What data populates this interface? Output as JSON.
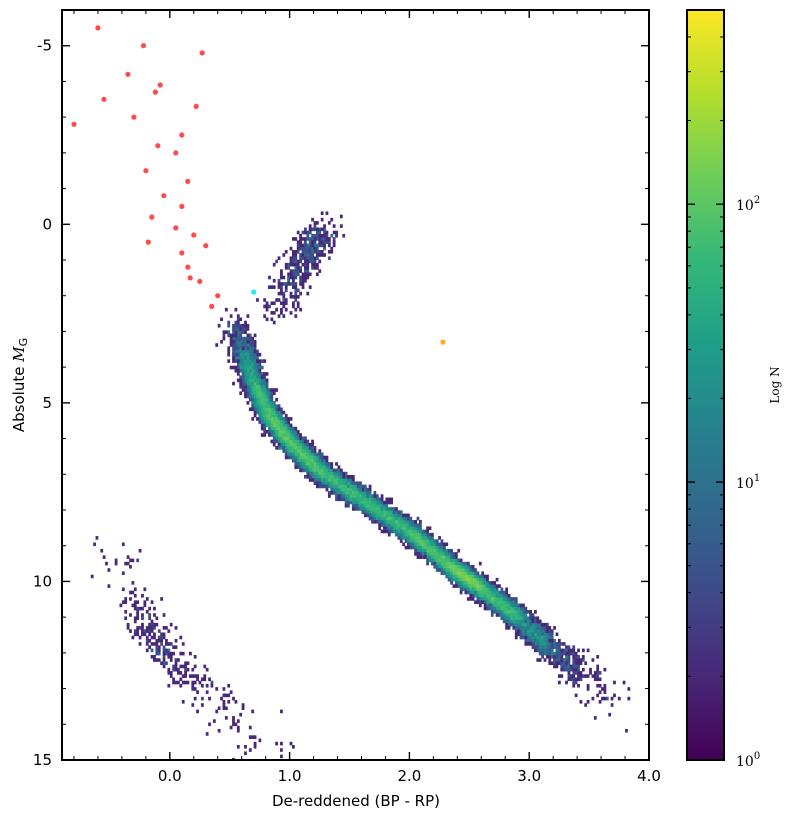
{
  "chart_data": {
    "type": "heatmap",
    "title": "",
    "xlabel": "De-reddened (BP - RP)",
    "ylabel": "Absolute M_G",
    "ylabel_parts": {
      "prefix": "Absolute ",
      "symbol": "M",
      "subscript": "G"
    },
    "xlim": [
      -0.9,
      4.0
    ],
    "ylim": [
      15,
      -6
    ],
    "y_inverted": true,
    "x_ticks": [
      0.0,
      1.0,
      2.0,
      3.0,
      4.0
    ],
    "x_tick_labels": [
      "0.0",
      "1.0",
      "2.0",
      "3.0",
      "4.0"
    ],
    "y_ticks": [
      -5,
      0,
      5,
      10,
      15
    ],
    "y_tick_labels": [
      "-5",
      "0",
      "5",
      "10",
      "15"
    ],
    "colorbar": {
      "label": "Log N",
      "scale": "log",
      "range": [
        1,
        500
      ],
      "ticks": [
        1,
        10,
        100
      ],
      "tick_labels": [
        {
          "base": "10",
          "exp": "0"
        },
        {
          "base": "10",
          "exp": "1"
        },
        {
          "base": "10",
          "exp": "2"
        }
      ],
      "colormap": "viridis"
    },
    "density_ridges": [
      {
        "name": "main-sequence",
        "points": [
          [
            0.55,
            2.9,
            8
          ],
          [
            0.62,
            3.6,
            40
          ],
          [
            0.7,
            4.4,
            150
          ],
          [
            0.82,
            5.3,
            250
          ],
          [
            1.0,
            6.1,
            300
          ],
          [
            1.25,
            6.9,
            280
          ],
          [
            1.6,
            7.7,
            260
          ],
          [
            2.0,
            8.6,
            300
          ],
          [
            2.35,
            9.6,
            400
          ],
          [
            2.6,
            10.2,
            350
          ],
          [
            2.9,
            11.0,
            150
          ],
          [
            3.15,
            11.8,
            40
          ],
          [
            3.4,
            12.5,
            10
          ],
          [
            3.7,
            13.2,
            3
          ]
        ]
      },
      {
        "name": "giant-branch",
        "points": [
          [
            0.9,
            2.4,
            6
          ],
          [
            1.0,
            1.7,
            10
          ],
          [
            1.1,
            1.1,
            12
          ],
          [
            1.2,
            0.5,
            18
          ],
          [
            1.28,
            0.2,
            8
          ]
        ]
      },
      {
        "name": "white-dwarf-sequence",
        "points": [
          [
            -0.45,
            9.2,
            2
          ],
          [
            -0.3,
            10.6,
            4
          ],
          [
            -0.15,
            11.5,
            12
          ],
          [
            0.05,
            12.3,
            8
          ],
          [
            0.3,
            13.2,
            4
          ],
          [
            0.6,
            14.2,
            3
          ],
          [
            0.95,
            14.9,
            2
          ]
        ]
      }
    ],
    "scatter_points": [
      {
        "name": "hot-stars",
        "color": "#ff2a2a",
        "points": [
          [
            -0.6,
            -5.5
          ],
          [
            -0.22,
            -5.0
          ],
          [
            0.27,
            -4.8
          ],
          [
            -0.35,
            -4.2
          ],
          [
            -0.55,
            -3.5
          ],
          [
            -0.12,
            -3.7
          ],
          [
            -0.08,
            -3.9
          ],
          [
            0.22,
            -3.3
          ],
          [
            -0.8,
            -2.8
          ],
          [
            -0.3,
            -3.0
          ],
          [
            0.1,
            -2.5
          ],
          [
            -0.1,
            -2.2
          ],
          [
            0.05,
            -2.0
          ],
          [
            -0.2,
            -1.5
          ],
          [
            0.15,
            -1.2
          ],
          [
            -0.05,
            -0.8
          ],
          [
            0.1,
            -0.5
          ],
          [
            -0.15,
            -0.2
          ],
          [
            0.05,
            0.1
          ],
          [
            0.2,
            0.3
          ],
          [
            0.3,
            0.6
          ],
          [
            0.1,
            0.8
          ],
          [
            0.15,
            1.2
          ],
          [
            0.25,
            1.6
          ],
          [
            0.4,
            2.0
          ],
          [
            0.35,
            2.3
          ],
          [
            0.17,
            1.5
          ],
          [
            -0.18,
            0.5
          ]
        ]
      },
      {
        "name": "cyan-star",
        "color": "#00e5ee",
        "points": [
          [
            0.7,
            1.9
          ]
        ]
      },
      {
        "name": "orange-star",
        "color": "#ff9900",
        "points": [
          [
            2.28,
            3.3
          ]
        ]
      }
    ]
  }
}
